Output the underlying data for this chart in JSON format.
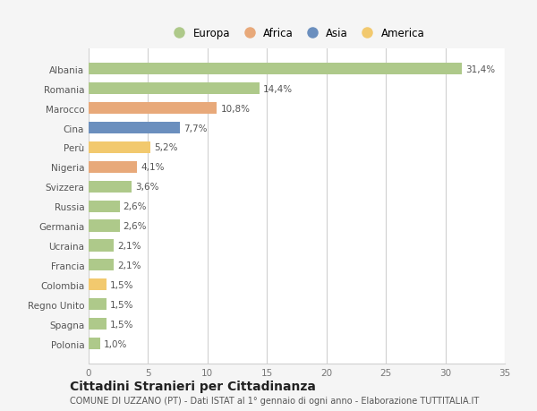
{
  "countries": [
    "Albania",
    "Romania",
    "Marocco",
    "Cina",
    "Perù",
    "Nigeria",
    "Svizzera",
    "Russia",
    "Germania",
    "Ucraina",
    "Francia",
    "Colombia",
    "Regno Unito",
    "Spagna",
    "Polonia"
  ],
  "values": [
    31.4,
    14.4,
    10.8,
    7.7,
    5.2,
    4.1,
    3.6,
    2.6,
    2.6,
    2.1,
    2.1,
    1.5,
    1.5,
    1.5,
    1.0
  ],
  "labels": [
    "31,4%",
    "14,4%",
    "10,8%",
    "7,7%",
    "5,2%",
    "4,1%",
    "3,6%",
    "2,6%",
    "2,6%",
    "2,1%",
    "2,1%",
    "1,5%",
    "1,5%",
    "1,5%",
    "1,0%"
  ],
  "continents": [
    "Europa",
    "Europa",
    "Africa",
    "Asia",
    "America",
    "Africa",
    "Europa",
    "Europa",
    "Europa",
    "Europa",
    "Europa",
    "America",
    "Europa",
    "Europa",
    "Europa"
  ],
  "continent_colors": {
    "Europa": "#aec98a",
    "Africa": "#e8a97a",
    "Asia": "#6b8fbe",
    "America": "#f2c96e"
  },
  "legend_order": [
    "Europa",
    "Africa",
    "Asia",
    "America"
  ],
  "title": "Cittadini Stranieri per Cittadinanza",
  "subtitle": "COMUNE DI UZZANO (PT) - Dati ISTAT al 1° gennaio di ogni anno - Elaborazione TUTTITALIA.IT",
  "xlim": [
    0,
    35
  ],
  "xticks": [
    0,
    5,
    10,
    15,
    20,
    25,
    30,
    35
  ],
  "background_color": "#f5f5f5",
  "plot_bg_color": "#ffffff",
  "grid_color": "#d0d0d0",
  "bar_height": 0.6,
  "label_fontsize": 7.5,
  "tick_fontsize": 7.5,
  "title_fontsize": 10,
  "subtitle_fontsize": 7,
  "legend_fontsize": 8.5
}
